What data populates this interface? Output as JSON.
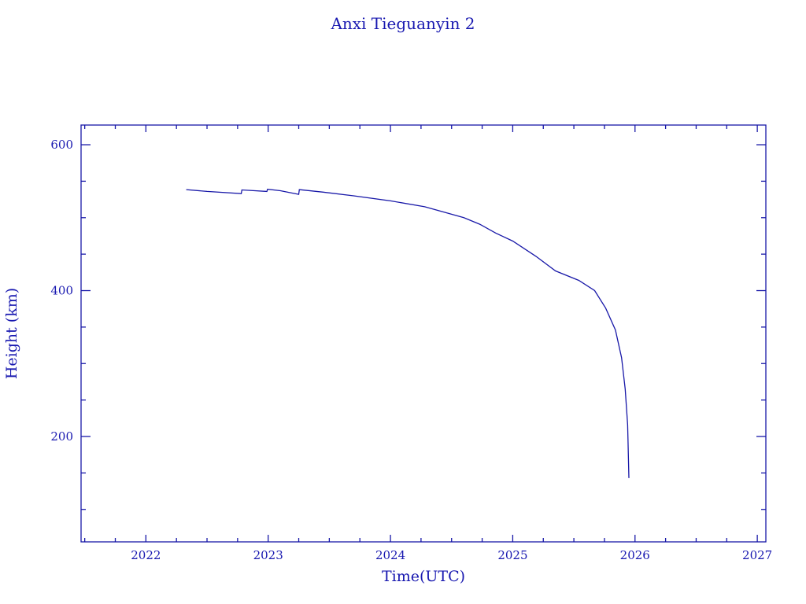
{
  "chart_data": {
    "type": "line",
    "title": "Anxi Tieguanyin 2",
    "xlabel": "Time(UTC)",
    "ylabel": "Height (km)",
    "xlim": [
      2021.47,
      2027.07
    ],
    "ylim": [
      55.5,
      627
    ],
    "xticks": [
      2022,
      2023,
      2024,
      2025,
      2026,
      2027
    ],
    "xtick_labels": [
      "2022",
      "2023",
      "2024",
      "2025",
      "2026",
      "2027"
    ],
    "x_minor_step": 0.25,
    "yticks": [
      200,
      400,
      600
    ],
    "ytick_labels": [
      "200",
      "400",
      "600"
    ],
    "y_minor_step": 50,
    "grid": false,
    "color": "#1818a8",
    "series": [
      {
        "name": "Height",
        "x": [
          2022.33,
          2022.5,
          2022.78,
          2022.785,
          2022.99,
          2022.995,
          2023.1,
          2023.25,
          2023.255,
          2023.45,
          2023.7,
          2024.0,
          2024.28,
          2024.6,
          2024.73,
          2024.86,
          2025.0,
          2025.19,
          2025.35,
          2025.54,
          2025.67,
          2025.76,
          2025.84,
          2025.89,
          2025.92,
          2025.94,
          2025.95
        ],
        "y": [
          538.5,
          536,
          533,
          538,
          536,
          539,
          537,
          532,
          538.5,
          535,
          530,
          523,
          515,
          500,
          491,
          479,
          468,
          447,
          427,
          414,
          400,
          376,
          346,
          308,
          265,
          216,
          143
        ]
      }
    ]
  }
}
